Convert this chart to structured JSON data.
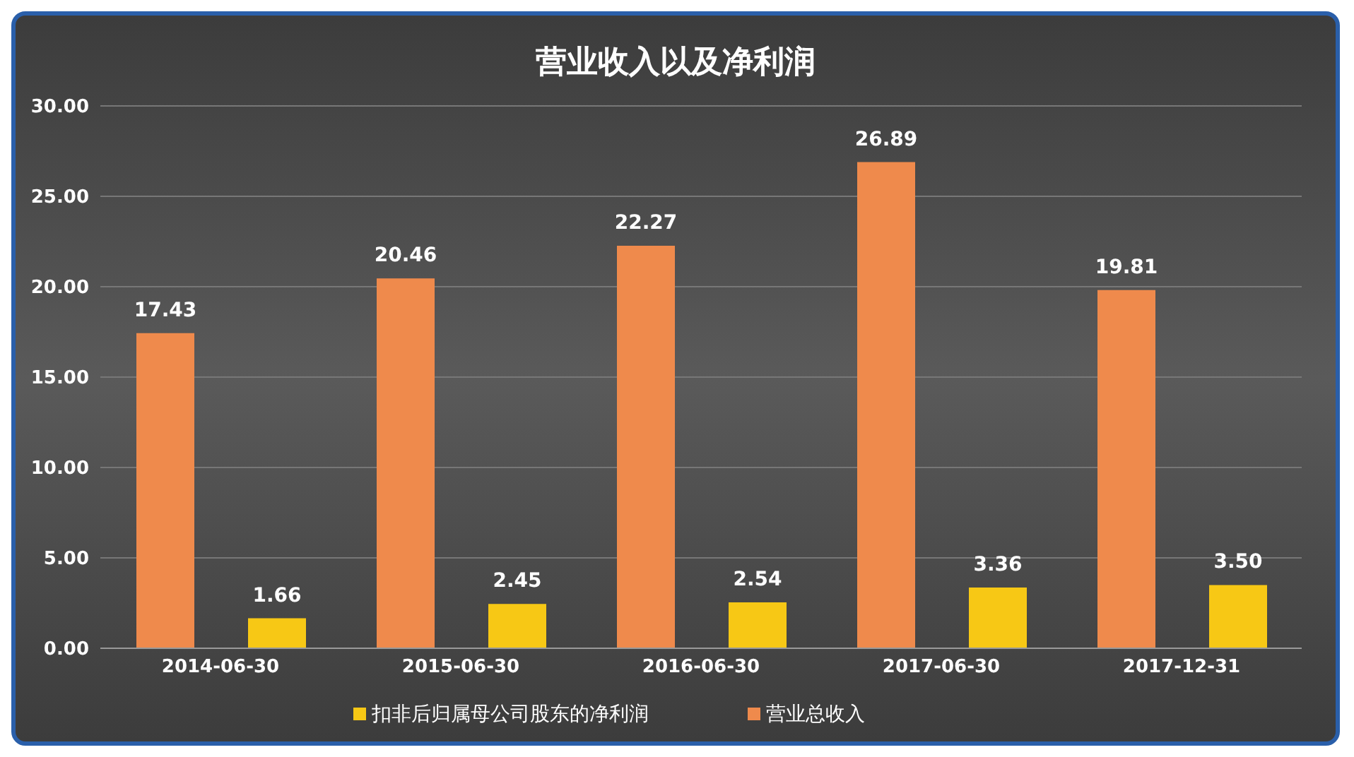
{
  "chart_data": {
    "type": "bar",
    "title": "营业收入以及净利润",
    "categories": [
      "2014-06-30",
      "2015-06-30",
      "2016-06-30",
      "2017-06-30",
      "2017-12-31"
    ],
    "series": [
      {
        "name": "营业总收入",
        "color": "#ef8a4c",
        "values": [
          17.43,
          20.46,
          22.27,
          26.89,
          19.81
        ],
        "value_labels": [
          "17.43",
          "20.46",
          "22.27",
          "26.89",
          "19.81"
        ]
      },
      {
        "name": "扣非后归属母公司股东的净利润",
        "color": "#f7c815",
        "values": [
          1.66,
          2.45,
          2.54,
          3.36,
          3.5
        ],
        "value_labels": [
          "1.66",
          "2.45",
          "2.54",
          "3.36",
          "3.50"
        ]
      }
    ],
    "ylim": [
      0,
      30
    ],
    "yticks": [
      {
        "value": 0,
        "label": "0.00"
      },
      {
        "value": 5,
        "label": "5.00"
      },
      {
        "value": 10,
        "label": "10.00"
      },
      {
        "value": 15,
        "label": "15.00"
      },
      {
        "value": 20,
        "label": "20.00"
      },
      {
        "value": 25,
        "label": "25.00"
      },
      {
        "value": 30,
        "label": "30.00"
      }
    ],
    "grid": "y",
    "legend": "bottom"
  }
}
